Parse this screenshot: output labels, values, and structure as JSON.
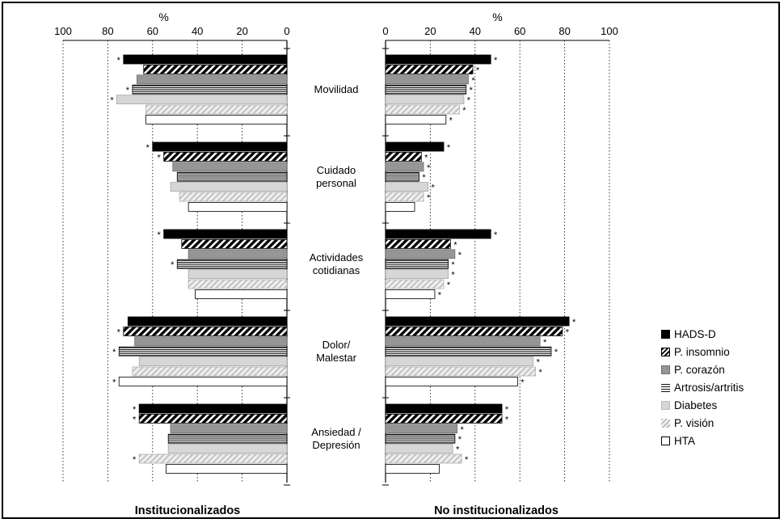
{
  "chart_data": {
    "type": "bar",
    "orientation": "horizontal",
    "unit_label": "%",
    "categories": [
      {
        "id": "movilidad",
        "lines": [
          "Movilidad"
        ]
      },
      {
        "id": "cuidado_personal",
        "lines": [
          "Cuidado",
          "personal"
        ]
      },
      {
        "id": "actividades_cotidianas",
        "lines": [
          "Actividades",
          "cotidianas"
        ]
      },
      {
        "id": "dolor_malestar",
        "lines": [
          "Dolor/",
          "Malestar"
        ]
      },
      {
        "id": "ansiedad_depresion",
        "lines": [
          "Ansiedad /",
          "Depresión"
        ]
      }
    ],
    "series": [
      {
        "name": "HADS-D",
        "pattern": "solid-black"
      },
      {
        "name": "P. insomnio",
        "pattern": "diagonal-black"
      },
      {
        "name": "P. corazón",
        "pattern": "solid-gray"
      },
      {
        "name": "Artrosis/artritis",
        "pattern": "horizontal-lines"
      },
      {
        "name": "Diabetes",
        "pattern": "solid-lightgray"
      },
      {
        "name": "P. visión",
        "pattern": "diagonal-lightgray"
      },
      {
        "name": "HTA",
        "pattern": "white"
      }
    ],
    "panels": [
      {
        "id": "institucionalizados",
        "title": "Institucionalizados",
        "direction": "right-to-left",
        "xlim": [
          0,
          100
        ],
        "ticks": [
          "100",
          "80",
          "60",
          "40",
          "20",
          "0"
        ],
        "tick_values": [
          100,
          80,
          60,
          40,
          20,
          0
        ],
        "values": [
          [
            73,
            64,
            67,
            69,
            76,
            63,
            63
          ],
          [
            60,
            55,
            51,
            49,
            52,
            48,
            44
          ],
          [
            55,
            47,
            44,
            49,
            44,
            44,
            41
          ],
          [
            71,
            73,
            68,
            75,
            66,
            69,
            75
          ],
          [
            66,
            66,
            52,
            53,
            53,
            66,
            54
          ]
        ],
        "stars": [
          [
            1,
            0,
            0,
            1,
            1,
            0,
            0
          ],
          [
            1,
            1,
            0,
            0,
            0,
            0,
            0
          ],
          [
            1,
            0,
            0,
            1,
            0,
            0,
            0
          ],
          [
            0,
            1,
            0,
            1,
            0,
            0,
            1
          ],
          [
            1,
            1,
            0,
            0,
            0,
            1,
            0
          ]
        ]
      },
      {
        "id": "no_institucionalizados",
        "title": "No institucionalizados",
        "direction": "left-to-right",
        "xlim": [
          0,
          100
        ],
        "ticks": [
          "0",
          "20",
          "40",
          "60",
          "80",
          "100"
        ],
        "tick_values": [
          0,
          20,
          40,
          60,
          80,
          100
        ],
        "values": [
          [
            47,
            39,
            37,
            36,
            35,
            33,
            27
          ],
          [
            26,
            16,
            17,
            15,
            19,
            17,
            13
          ],
          [
            47,
            29,
            31,
            28,
            28,
            26,
            22
          ],
          [
            82,
            79,
            69,
            74,
            66,
            67,
            59
          ],
          [
            52,
            52,
            32,
            31,
            30,
            34,
            24
          ]
        ],
        "stars": [
          [
            1,
            1,
            1,
            1,
            1,
            1,
            1
          ],
          [
            1,
            1,
            1,
            1,
            1,
            1,
            0
          ],
          [
            1,
            1,
            1,
            1,
            1,
            1,
            1
          ],
          [
            1,
            1,
            1,
            1,
            1,
            1,
            1
          ],
          [
            1,
            1,
            1,
            1,
            1,
            1,
            0
          ]
        ]
      }
    ],
    "significance_marker": "*",
    "legend_position": "right",
    "grid": "dotted-vertical"
  },
  "legend": {
    "items": [
      "HADS-D",
      "P. insomnio",
      "P. corazón",
      "Artrosis/artritis",
      "Diabetes",
      "P. visión",
      "HTA"
    ]
  }
}
